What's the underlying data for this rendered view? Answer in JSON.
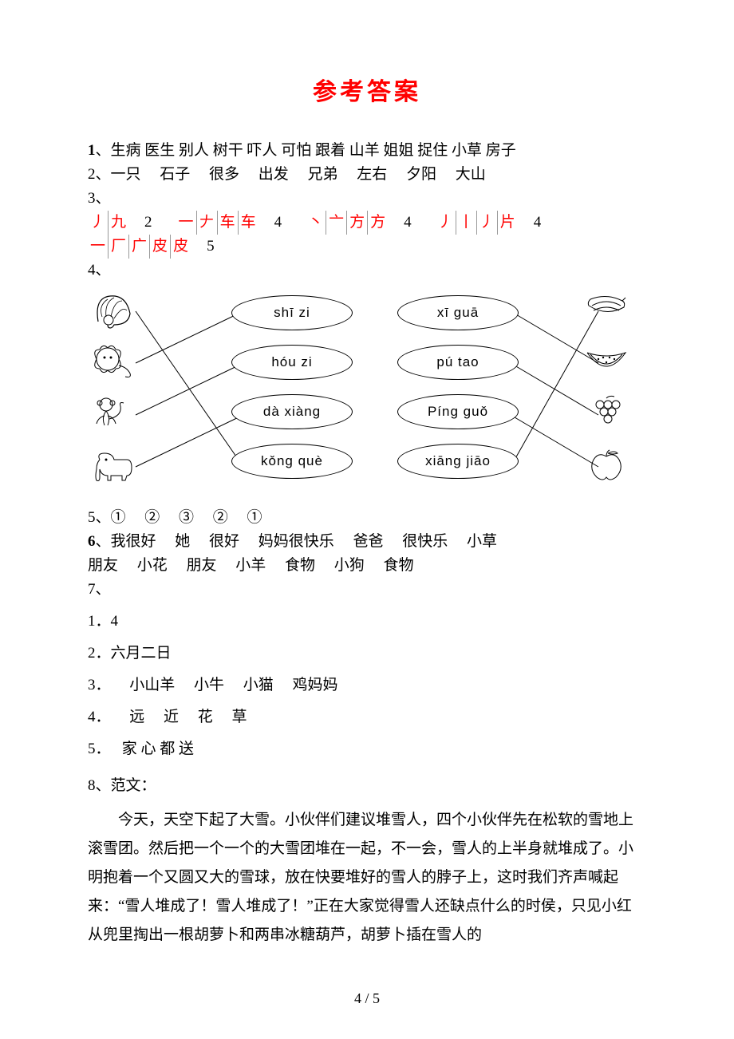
{
  "title": "参考答案",
  "title_color": "#ff0000",
  "ans1_label": "1",
  "ans1": "、生病 医生 别人 树干 吓人 可怕 跟着 山羊 姐姐 捉住 小草 房子",
  "ans2_label": "2、",
  "ans2": "一只     石子     很多     出发     兄弟     左右     夕阳     大山",
  "ans3_label": "3、",
  "ans3": {
    "groups": [
      {
        "parts": [
          "丿",
          "九"
        ],
        "num": "2"
      },
      {
        "parts": [
          "一",
          "𠂇",
          "车",
          "车"
        ],
        "num": "4"
      },
      {
        "parts": [
          "丶",
          "亠",
          "方",
          "方"
        ],
        "num": "4"
      },
      {
        "parts": [
          "丿",
          "丨",
          "丿",
          "片"
        ],
        "num": "4"
      },
      {
        "parts": [
          "一",
          "厂",
          "广",
          "皮",
          "皮"
        ],
        "num": "5"
      }
    ],
    "color": "#ff0000"
  },
  "ans4_label": "4、",
  "diagram": {
    "pinyin_left": [
      "shī zi",
      "hóu zi",
      "dà xiàng",
      "kǒng què"
    ],
    "pinyin_right": [
      "xī guā",
      "pú tao",
      "Píng guǒ",
      "xiāng jiāo"
    ],
    "animals": [
      "peacock",
      "lion",
      "monkey",
      "elephant"
    ],
    "fruits": [
      "banana",
      "watermelon",
      "grapes",
      "apple"
    ],
    "line_color": "#000000",
    "oval_border": "#000000",
    "oval_bg": "#ffffff"
  },
  "ans5_label": "5、",
  "ans5": "①     ②     ③     ②     ①",
  "ans6_label": "6",
  "ans6_line1": "、我很好     她     很好     妈妈很快乐     爸爸     很快乐     小草",
  "ans6_line2": "朋友     小花     朋友     小羊     食物     小狗     食物",
  "ans7_label": "7、",
  "ans7_items": [
    "1．4",
    "2．六月二日",
    "3．     小山羊     小牛     小猫     鸡妈妈",
    "4．     远     近     花     草",
    "5．   家 心 都 送"
  ],
  "ans8_label": "8、范文：",
  "ans8_para": "今天，天空下起了大雪。小伙伴们建议堆雪人，四个小伙伴先在松软的雪地上滚雪团。然后把一个一个的大雪团堆在一起，不一会，雪人的上半身就堆成了。小明抱着一个又圆又大的雪球，放在快要堆好的雪人的脖子上，这时我们齐声喊起来：“雪人堆成了！雪人堆成了！”正在大家觉得雪人还缺点什么的时侯，只见小红从兜里掏出一根胡萝卜和两串冰糖葫芦，胡萝卜插在雪人的",
  "footer": "4 / 5"
}
